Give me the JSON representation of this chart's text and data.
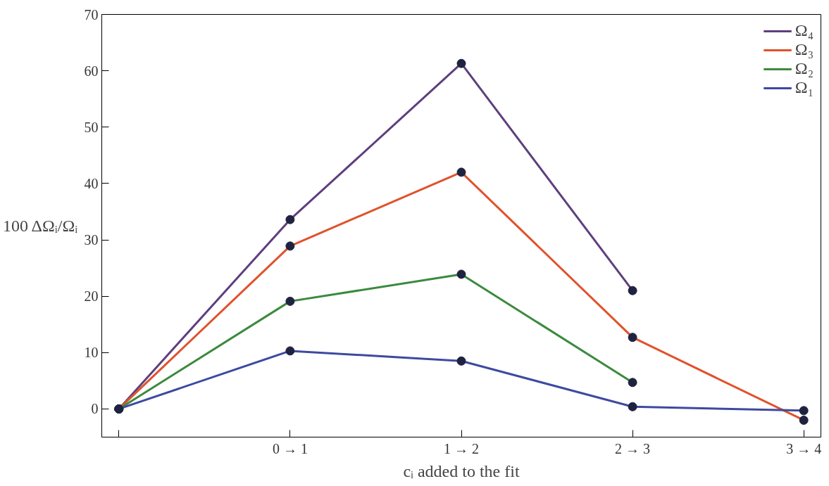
{
  "chart_data": {
    "type": "line",
    "xlabel": "cᵢ added to the fit",
    "ylabel": "100 ΔΩᵢ/Ωᵢ",
    "categories": [
      null,
      "0 → 1",
      "1 → 2",
      "2 → 3",
      "3 → 4"
    ],
    "ylim": [
      -5,
      70
    ],
    "yticks": [
      0,
      10,
      20,
      30,
      40,
      50,
      60,
      70
    ],
    "series": [
      {
        "name": "Ω₄",
        "color": "#5e3f7e",
        "values": [
          0,
          33.6,
          61.3,
          21.0,
          null
        ]
      },
      {
        "name": "Ω₃",
        "color": "#e0522c",
        "values": [
          0,
          28.9,
          42.0,
          12.7,
          -2.0
        ]
      },
      {
        "name": "Ω₂",
        "color": "#3b8a3e",
        "values": [
          0,
          19.1,
          23.9,
          4.7,
          null
        ]
      },
      {
        "name": "Ω₁",
        "color": "#3d4aa0",
        "values": [
          0,
          10.3,
          8.5,
          0.4,
          -0.3
        ]
      }
    ],
    "marker": "circle",
    "line_style": "solid",
    "grid": false,
    "legend": "top right"
  }
}
